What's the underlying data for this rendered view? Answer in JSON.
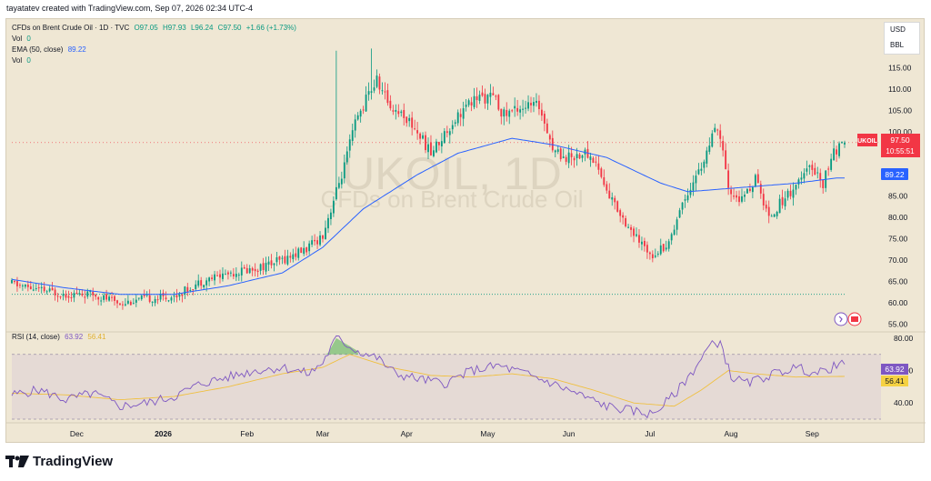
{
  "header": {
    "attribution": "tayatatev created with TradingView.com, Sep 07, 2026 02:34 UTC-4"
  },
  "legend": {
    "main_name": "CFDs on Brent Crude Oil · 1D · TVC",
    "o": "O97.05",
    "h": "H97.93",
    "l": "L96.24",
    "c": "C97.50",
    "chg": "+1.66 (+1.73%)",
    "vol1_label": "Vol",
    "vol1_value": "0",
    "ema_label": "EMA (50, close)",
    "ema_value": "89.22",
    "vol2_label": "Vol",
    "vol2_value": "0",
    "rsi_label": "RSI (14, close)",
    "rsi_value": "63.92",
    "rsi_ma_value": "56.41"
  },
  "units": {
    "currency": "USD",
    "unit": "BBL"
  },
  "watermark": {
    "symbol": "UKOIL, 1D",
    "name": "CFDs on Brent Crude Oil"
  },
  "price_badges": {
    "symbol": "UKOIL",
    "price": "97.50",
    "countdown": "10:55:51",
    "ema": "89.22",
    "rsi": "63.92",
    "rsi_ma": "56.41"
  },
  "colors": {
    "up": "#089981",
    "down": "#f23645",
    "ema": "#2962ff",
    "rsi": "#7e57c2",
    "rsi_ma": "#f0c040"
  },
  "footer": {
    "brand": "TradingView"
  },
  "chart_data": [
    {
      "type": "candlestick",
      "title": "CFDs on Brent Crude Oil · 1D · TVC",
      "x_labels": [
        "Dec",
        "2026",
        "Feb",
        "Mar",
        "Apr",
        "May",
        "Jun",
        "Jul",
        "Aug",
        "Sep"
      ],
      "y_ticks": [
        55,
        60,
        65,
        70,
        75,
        80,
        85,
        90,
        95,
        100,
        105,
        110,
        115
      ],
      "ylim": [
        53,
        120
      ],
      "grid": false,
      "horizontal_line": 62,
      "series": [
        {
          "name": "EMA (50, close)",
          "keyframes": [
            [
              0,
              65.5
            ],
            [
              20,
              63.5
            ],
            [
              40,
              62
            ],
            [
              60,
              62
            ],
            [
              80,
              64
            ],
            [
              100,
              67
            ],
            [
              115,
              73
            ],
            [
              130,
              82
            ],
            [
              150,
              90
            ],
            [
              165,
              95
            ],
            [
              185,
              98.5
            ],
            [
              200,
              97
            ],
            [
              220,
              94
            ],
            [
              240,
              88
            ],
            [
              250,
              86
            ],
            [
              270,
              87
            ],
            [
              290,
              88
            ],
            [
              305,
              89.22
            ]
          ]
        }
      ],
      "candle_keyframes": [
        [
          0,
          64.5
        ],
        [
          10,
          63
        ],
        [
          20,
          62
        ],
        [
          30,
          62
        ],
        [
          40,
          60
        ],
        [
          50,
          61
        ],
        [
          60,
          61.5
        ],
        [
          70,
          65
        ],
        [
          80,
          67
        ],
        [
          90,
          68
        ],
        [
          100,
          70
        ],
        [
          110,
          73
        ],
        [
          115,
          76
        ],
        [
          118,
          82
        ],
        [
          120,
          86
        ],
        [
          123,
          92
        ],
        [
          127,
          102
        ],
        [
          132,
          109
        ],
        [
          135,
          112
        ],
        [
          140,
          106
        ],
        [
          145,
          104
        ],
        [
          150,
          100
        ],
        [
          155,
          95
        ],
        [
          165,
          104
        ],
        [
          172,
          108
        ],
        [
          178,
          108
        ],
        [
          182,
          104
        ],
        [
          188,
          106
        ],
        [
          195,
          106
        ],
        [
          198,
          101
        ],
        [
          200,
          96
        ],
        [
          205,
          94
        ],
        [
          212,
          95
        ],
        [
          216,
          93
        ],
        [
          220,
          86
        ],
        [
          226,
          80
        ],
        [
          232,
          74
        ],
        [
          237,
          71.5
        ],
        [
          243,
          74
        ],
        [
          247,
          82
        ],
        [
          250,
          86
        ],
        [
          255,
          92
        ],
        [
          260,
          100
        ],
        [
          262,
          99
        ],
        [
          265,
          86
        ],
        [
          270,
          84
        ],
        [
          275,
          89
        ],
        [
          280,
          80
        ],
        [
          285,
          84
        ],
        [
          292,
          89
        ],
        [
          296,
          92
        ],
        [
          300,
          88
        ],
        [
          303,
          94
        ],
        [
          306,
          96.5
        ],
        [
          308,
          97.5
        ]
      ],
      "last": {
        "open": 97.05,
        "high": 97.93,
        "low": 96.24,
        "close": 97.5
      }
    },
    {
      "type": "line",
      "title": "RSI (14, close)",
      "y_ticks": [
        40,
        60,
        80
      ],
      "ylim": [
        30,
        85
      ],
      "band": [
        30,
        70
      ],
      "series": [
        {
          "name": "RSI (14, close)",
          "keyframes": [
            [
              0,
              45
            ],
            [
              10,
              48
            ],
            [
              20,
              42
            ],
            [
              30,
              46
            ],
            [
              40,
              38
            ],
            [
              50,
              40
            ],
            [
              60,
              44
            ],
            [
              70,
              52
            ],
            [
              80,
              56
            ],
            [
              90,
              60
            ],
            [
              100,
              62
            ],
            [
              110,
              58
            ],
            [
              115,
              65
            ],
            [
              120,
              80
            ],
            [
              128,
              72
            ],
            [
              135,
              68
            ],
            [
              142,
              58
            ],
            [
              150,
              55
            ],
            [
              160,
              52
            ],
            [
              170,
              60
            ],
            [
              180,
              63
            ],
            [
              190,
              58
            ],
            [
              200,
              52
            ],
            [
              210,
              45
            ],
            [
              220,
              38
            ],
            [
              230,
              35
            ],
            [
              237,
              33
            ],
            [
              245,
              45
            ],
            [
              252,
              60
            ],
            [
              258,
              75
            ],
            [
              262,
              78
            ],
            [
              266,
              56
            ],
            [
              272,
              52
            ],
            [
              280,
              57
            ],
            [
              290,
              62
            ],
            [
              298,
              58
            ],
            [
              305,
              63
            ],
            [
              308,
              63.92
            ]
          ]
        },
        {
          "name": "RSI MA",
          "keyframes": [
            [
              0,
              46
            ],
            [
              20,
              45
            ],
            [
              40,
              42
            ],
            [
              60,
              44
            ],
            [
              80,
              50
            ],
            [
              100,
              58
            ],
            [
              115,
              62
            ],
            [
              125,
              70
            ],
            [
              140,
              62
            ],
            [
              155,
              57
            ],
            [
              170,
              56
            ],
            [
              185,
              58
            ],
            [
              200,
              55
            ],
            [
              215,
              48
            ],
            [
              230,
              40
            ],
            [
              245,
              38
            ],
            [
              255,
              48
            ],
            [
              265,
              60
            ],
            [
              275,
              58
            ],
            [
              290,
              56
            ],
            [
              308,
              56.41
            ]
          ]
        }
      ]
    }
  ]
}
